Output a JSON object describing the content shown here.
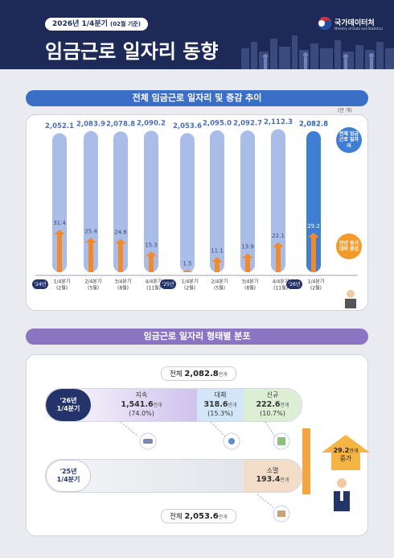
{
  "header": {
    "period": "2026년 1/4분기",
    "period_note": "(02월 기준)",
    "title": "임금근로 일자리 동향",
    "logo": "국가데이터처",
    "logo_sub": "Ministry of Data and Statistics"
  },
  "chart_data": {
    "type": "bar",
    "title": "전체 임금근로 일자리 및 증감 추이",
    "unit": "(만 개)",
    "categories": [
      "1/4분기",
      "2/4분기",
      "3/4분기",
      "4/4분기",
      "1/4분기",
      "2/4분기",
      "3/4분기",
      "4/4분기",
      "1/4분기"
    ],
    "category_months": [
      "(2월)",
      "(5월)",
      "(8월)",
      "(11월)",
      "(2월)",
      "(5월)",
      "(8월)",
      "(11월)",
      "(2월)"
    ],
    "year_labels": [
      "'24년",
      null,
      null,
      null,
      "'25년",
      null,
      null,
      null,
      "'26년"
    ],
    "series": [
      {
        "name": "전체 임금근로 일자리",
        "color": "#aabde8",
        "highlight_color": "#3f7fd3",
        "values": [
          2052.1,
          2083.9,
          2078.8,
          2090.2,
          2053.6,
          2095.0,
          2092.7,
          2112.3,
          2082.8
        ],
        "value_labels": [
          "2,052.1",
          "2,083.9",
          "2,078.8",
          "2,090.2",
          "2,053.6",
          "2,095.0",
          "2,092.7",
          "2,112.3",
          "2,082.8"
        ]
      },
      {
        "name": "전년 동기대비 증감",
        "color": "#f08a2c",
        "axis": "y2",
        "values": [
          31.4,
          25.4,
          24.6,
          15.3,
          1.5,
          11.1,
          13.9,
          22.1,
          29.2
        ]
      }
    ],
    "ylim": [
      0,
      2200
    ],
    "y2lim": [
      0,
      110
    ]
  },
  "distribution": {
    "title": "임금근로 일자리 형태별 분포",
    "unit": "만개",
    "total_word": "전체",
    "current": {
      "year": "'26년",
      "quarter": "1/4분기",
      "total": "2,082.8",
      "segments": [
        {
          "name": "지속",
          "value": "1,541.6",
          "percent": "(74.0%)"
        },
        {
          "name": "대체",
          "value": "318.6",
          "percent": "(15.3%)"
        },
        {
          "name": "신규",
          "value": "222.6",
          "percent": "(10.7%)"
        }
      ]
    },
    "previous": {
      "year": "'25년",
      "quarter": "1/4분기",
      "total": "2,053.6",
      "segments": [
        {
          "name": "소멸",
          "value": "193.4"
        }
      ]
    },
    "increase": {
      "value": "29.2",
      "word": "증가"
    }
  }
}
